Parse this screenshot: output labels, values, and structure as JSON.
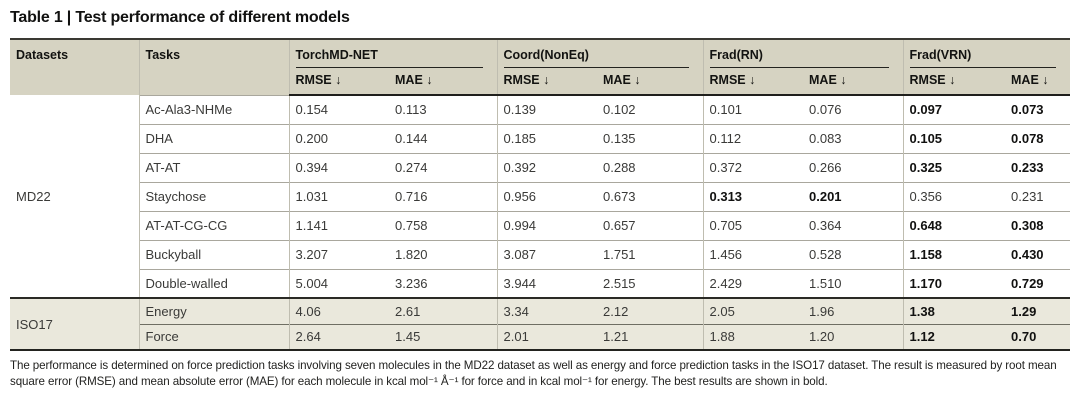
{
  "title": "Table 1 | Test performance of different models",
  "table": {
    "datasets_header": "Datasets",
    "tasks_header": "Tasks",
    "groups": [
      "TorchMD-NET",
      "Coord(NonEq)",
      "Frad(RN)",
      "Frad(VRN)"
    ],
    "rmse_label": "RMSE ↓",
    "mae_label": "MAE ↓",
    "sections": [
      {
        "dataset": "MD22",
        "rows": [
          {
            "task": "Ac-Ala3-NHMe",
            "values": [
              "0.154",
              "0.113",
              "0.139",
              "0.102",
              "0.101",
              "0.076",
              "0.097",
              "0.073"
            ],
            "bold": [
              6,
              7
            ]
          },
          {
            "task": "DHA",
            "values": [
              "0.200",
              "0.144",
              "0.185",
              "0.135",
              "0.112",
              "0.083",
              "0.105",
              "0.078"
            ],
            "bold": [
              6,
              7
            ]
          },
          {
            "task": "AT-AT",
            "values": [
              "0.394",
              "0.274",
              "0.392",
              "0.288",
              "0.372",
              "0.266",
              "0.325",
              "0.233"
            ],
            "bold": [
              6,
              7
            ]
          },
          {
            "task": "Staychose",
            "values": [
              "1.031",
              "0.716",
              "0.956",
              "0.673",
              "0.313",
              "0.201",
              "0.356",
              "0.231"
            ],
            "bold": [
              4,
              5
            ]
          },
          {
            "task": "AT-AT-CG-CG",
            "values": [
              "1.141",
              "0.758",
              "0.994",
              "0.657",
              "0.705",
              "0.364",
              "0.648",
              "0.308"
            ],
            "bold": [
              6,
              7
            ]
          },
          {
            "task": "Buckyball",
            "values": [
              "3.207",
              "1.820",
              "3.087",
              "1.751",
              "1.456",
              "0.528",
              "1.158",
              "0.430"
            ],
            "bold": [
              6,
              7
            ]
          },
          {
            "task": "Double-walled",
            "values": [
              "5.004",
              "3.236",
              "3.944",
              "2.515",
              "2.429",
              "1.510",
              "1.170",
              "0.729"
            ],
            "bold": [
              6,
              7
            ]
          }
        ]
      },
      {
        "dataset": "ISO17",
        "rows": [
          {
            "task": "Energy",
            "values": [
              "4.06",
              "2.61",
              "3.34",
              "2.12",
              "2.05",
              "1.96",
              "1.38",
              "1.29"
            ],
            "bold": [
              6,
              7
            ]
          },
          {
            "task": "Force",
            "values": [
              "2.64",
              "1.45",
              "2.01",
              "1.21",
              "1.88",
              "1.20",
              "1.12",
              "0.70"
            ],
            "bold": [
              6,
              7
            ]
          }
        ]
      }
    ]
  },
  "footnote": "The performance is determined on force prediction tasks involving seven molecules in the MD22 dataset as well as energy and force prediction tasks in the ISO17 dataset. The result is measured by root mean square error (RMSE) and mean absolute error (MAE) for each molecule in kcal mol⁻¹ Å⁻¹ for force and in kcal mol⁻¹ for energy. The best results are shown in bold.",
  "colors": {
    "header_bg": "#d6d3c2",
    "iso_row_bg": "#eae8dc",
    "heavy_border": "#23231f",
    "row_separator": "#a9a79d",
    "column_divider": "#bfbdb0",
    "iso_separator": "#6f6e63",
    "text": "#1c1c1a"
  }
}
